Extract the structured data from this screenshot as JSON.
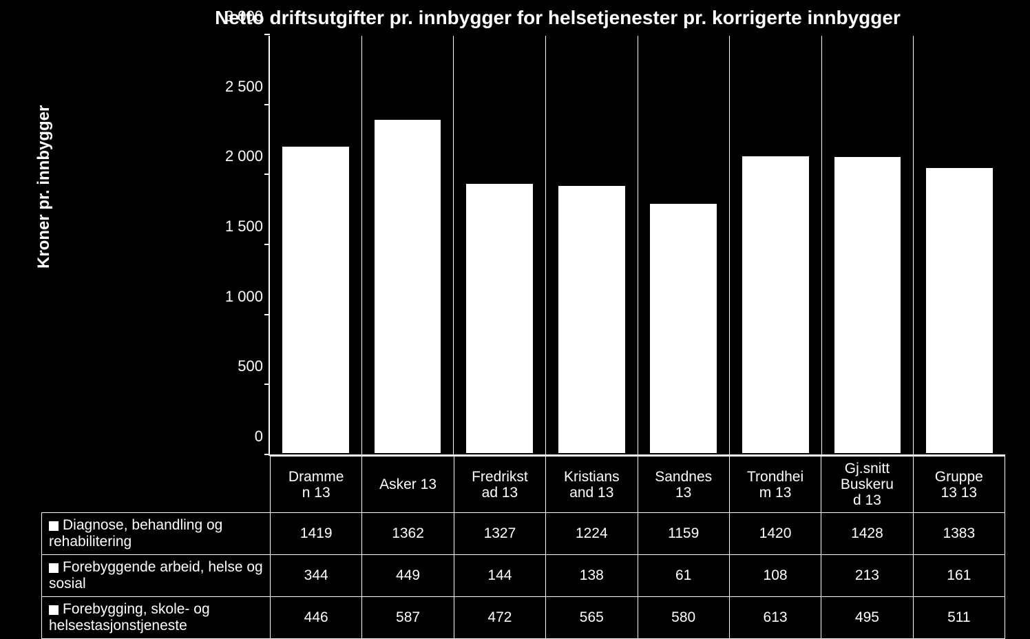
{
  "chart": {
    "type": "bar-stacked",
    "title": "Netto driftsutgifter pr. innbygger for helsetjenester pr. korrigerte innbygger",
    "ylabel": "Kroner pr. innbygger",
    "ylim": [
      0,
      3000
    ],
    "ytick_step": 500,
    "yticks": [
      "0",
      "500",
      "1 000",
      "1 500",
      "2 000",
      "2 500",
      "3 000"
    ],
    "background_color": "#000000",
    "bar_color": "#ffffff",
    "grid_color": "#ffffff",
    "text_color": "#ffffff",
    "title_fontsize": 28,
    "label_fontsize": 22,
    "bar_width": 0.76,
    "categories": [
      "Dramme\nn 13",
      "Asker 13",
      "Fredrikst\nad 13",
      "Kristians\nand 13",
      "Sandnes\n13",
      "Trondhei\nm 13",
      "Gj.snitt\nBuskeru\nd 13",
      "Gruppe\n13 13"
    ],
    "series": [
      {
        "label": "Diagnose, behandling og rehabilitering",
        "values": [
          1419,
          1362,
          1327,
          1224,
          1159,
          1420,
          1428,
          1383
        ]
      },
      {
        "label": "Forebyggende arbeid, helse og sosial",
        "values": [
          344,
          449,
          144,
          138,
          61,
          108,
          213,
          161
        ]
      },
      {
        "label": "Forebygging, skole- og helsestasjonstjeneste",
        "values": [
          446,
          587,
          472,
          565,
          580,
          613,
          495,
          511
        ]
      }
    ],
    "totals": [
      2209,
      2398,
      1943,
      1927,
      1800,
      2141,
      2136,
      2055
    ]
  }
}
